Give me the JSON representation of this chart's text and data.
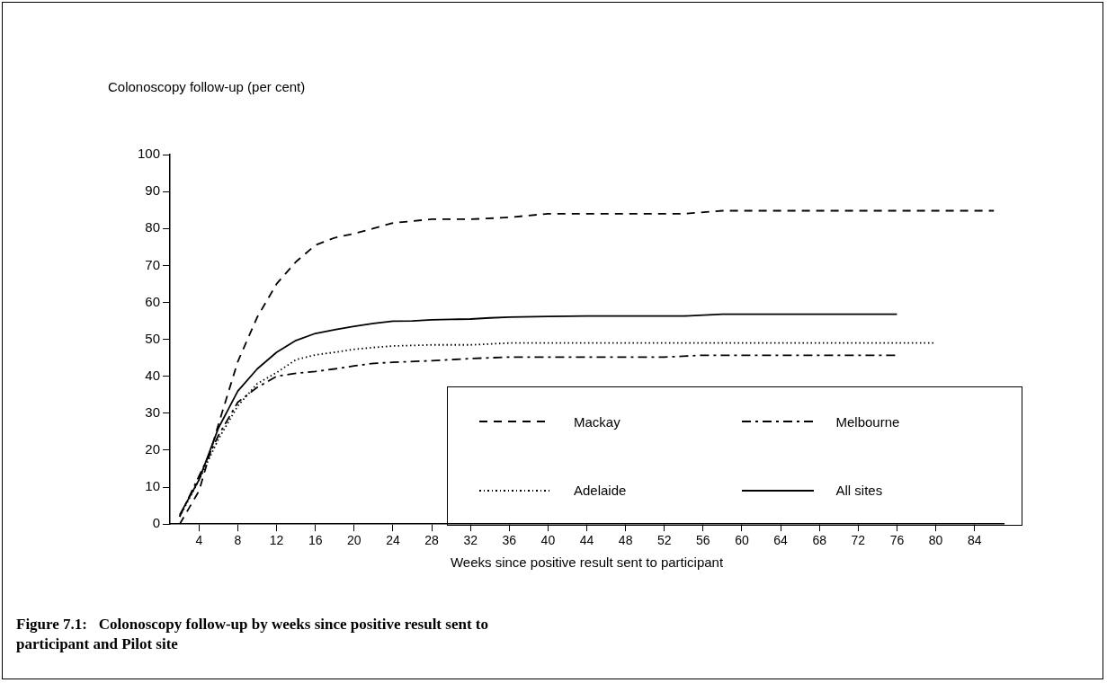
{
  "chart_data": {
    "type": "line",
    "ylabel": "Colonoscopy follow-up (per cent)",
    "xlabel": "Weeks since positive result sent to participant",
    "annotations": [
      "Figure 7.1:   Colonoscopy follow-up by weeks since positive result sent to participant and Pilot site"
    ],
    "xlim": [
      1,
      87
    ],
    "xticks": [
      4,
      8,
      12,
      16,
      20,
      24,
      28,
      32,
      36,
      40,
      44,
      48,
      52,
      56,
      60,
      64,
      68,
      72,
      76,
      80,
      84
    ],
    "ylim": [
      0,
      100
    ],
    "yticks": [
      0,
      10,
      20,
      30,
      40,
      50,
      60,
      70,
      80,
      90,
      100
    ],
    "grid": false,
    "legend": "bottom right",
    "marker": "none",
    "series": [
      {
        "name": "Mackay",
        "color": "#000000",
        "line_style": "dashed",
        "x": [
          2,
          4,
          6,
          8,
          10,
          12,
          14,
          16,
          18,
          20,
          22,
          24,
          26,
          28,
          32,
          36,
          40,
          54,
          58,
          86
        ],
        "values": [
          0,
          9,
          27,
          44,
          56,
          65,
          71,
          75.5,
          77.5,
          78.6,
          80,
          81.5,
          82,
          82.5,
          82.5,
          83,
          84,
          84,
          84.8,
          84.8
        ]
      },
      {
        "name": "Melbourne",
        "color": "#000000",
        "line_style": "dashdot",
        "x": [
          2,
          4,
          6,
          8,
          10,
          12,
          14,
          16,
          18,
          20,
          22,
          24,
          28,
          32,
          36,
          52,
          56,
          76
        ],
        "values": [
          2,
          13,
          24,
          33,
          37,
          40,
          40.8,
          41.3,
          42,
          42.8,
          43.5,
          43.8,
          44.2,
          44.8,
          45.2,
          45.2,
          45.7,
          45.7
        ]
      },
      {
        "name": "Adelaide",
        "color": "#000000",
        "line_style": "dotted",
        "x": [
          2,
          4,
          6,
          8,
          10,
          12,
          14,
          16,
          18,
          20,
          22,
          24,
          28,
          32,
          36,
          80
        ],
        "values": [
          2,
          12,
          23,
          32,
          38,
          41,
          44.5,
          45.8,
          46.5,
          47.3,
          47.8,
          48.2,
          48.5,
          48.5,
          49,
          49
        ]
      },
      {
        "name": "All sites",
        "color": "#000000",
        "line_style": "solid",
        "x": [
          2,
          4,
          6,
          8,
          10,
          12,
          14,
          16,
          18,
          20,
          22,
          24,
          26,
          28,
          30,
          32,
          34,
          36,
          40,
          44,
          54,
          58,
          76
        ],
        "values": [
          2.5,
          12,
          26,
          36,
          42,
          46.5,
          49.7,
          51.6,
          52.6,
          53.5,
          54.3,
          54.9,
          55,
          55.3,
          55.4,
          55.5,
          55.8,
          56,
          56.2,
          56.3,
          56.3,
          56.8,
          56.8
        ]
      }
    ]
  }
}
